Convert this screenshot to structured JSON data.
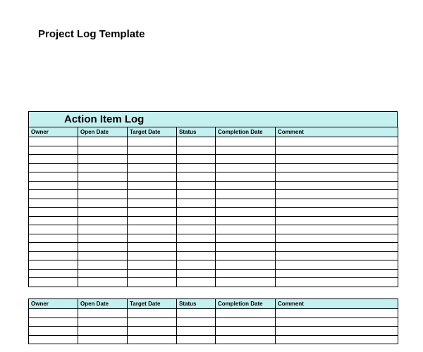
{
  "page_title": "Project Log Template",
  "main_table": {
    "title": "Action Item Log",
    "title_bg": "#c4f0f0",
    "header_bg": "#c4f0f0",
    "columns": [
      "Owner",
      "Open Date",
      "Target Date",
      "Status",
      "Completion Date",
      "Comment"
    ],
    "row_count": 17,
    "border_color": "#000000",
    "text_color": "#000000",
    "header_fontsize": 8,
    "title_fontsize": 15
  },
  "second_table": {
    "header_bg": "#c4f0f0",
    "columns": [
      "Owner",
      "Open Date",
      "Target Date",
      "Status",
      "Completion Date",
      "Comment"
    ],
    "row_count": 4,
    "border_color": "#000000",
    "text_color": "#000000",
    "header_fontsize": 8
  },
  "background_color": "#ffffff",
  "page_title_fontsize": 15
}
